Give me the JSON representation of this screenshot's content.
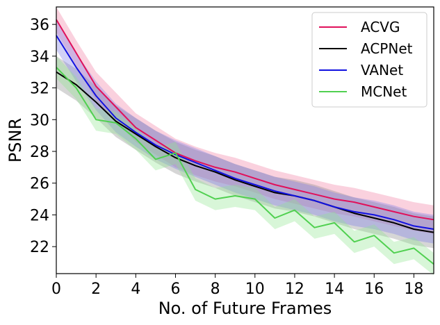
{
  "chart_data": {
    "type": "line",
    "title": "",
    "xlabel": "No. of Future Frames",
    "ylabel": "PSNR",
    "xlim": [
      0,
      19
    ],
    "ylim": [
      20.3,
      37.1
    ],
    "xticks": [
      0,
      2,
      4,
      6,
      8,
      10,
      12,
      14,
      16,
      18
    ],
    "yticks": [
      22,
      24,
      26,
      28,
      30,
      32,
      34,
      36
    ],
    "legend_position": "top-right",
    "x": [
      0,
      1,
      2,
      3,
      4,
      5,
      6,
      7,
      8,
      9,
      10,
      11,
      12,
      13,
      14,
      15,
      16,
      17,
      18,
      19
    ],
    "series": [
      {
        "name": "ACVG",
        "color": "#e0105a",
        "band_color": "#f07aa0",
        "values": [
          36.3,
          34.2,
          32.1,
          30.8,
          29.5,
          28.7,
          27.9,
          27.4,
          27.0,
          26.7,
          26.3,
          25.9,
          25.6,
          25.3,
          25.0,
          24.8,
          24.5,
          24.2,
          23.9,
          23.7
        ],
        "band": [
          0.8,
          0.8,
          0.9,
          0.9,
          0.9,
          0.9,
          0.9,
          0.9,
          0.9,
          0.9,
          0.9,
          0.9,
          0.9,
          0.9,
          0.9,
          0.9,
          0.9,
          0.9,
          0.9,
          0.9
        ]
      },
      {
        "name": "ACPNet",
        "color": "#000000",
        "band_color": "#8a8a8a",
        "values": [
          33.0,
          32.2,
          31.1,
          29.9,
          29.1,
          28.3,
          27.6,
          27.1,
          26.7,
          26.2,
          25.8,
          25.4,
          25.2,
          24.9,
          24.5,
          24.1,
          23.8,
          23.5,
          23.1,
          22.9
        ],
        "band": [
          1.0,
          1.0,
          1.0,
          1.0,
          1.0,
          1.0,
          1.0,
          1.0,
          1.0,
          1.0,
          1.0,
          1.0,
          1.0,
          1.0,
          1.0,
          1.0,
          1.0,
          1.0,
          1.0,
          1.0
        ]
      },
      {
        "name": "VANet",
        "color": "#1010e0",
        "band_color": "#7a7ae8",
        "values": [
          35.3,
          33.3,
          31.5,
          30.1,
          29.2,
          28.4,
          27.8,
          27.3,
          26.8,
          26.3,
          25.9,
          25.5,
          25.2,
          24.9,
          24.5,
          24.2,
          24.0,
          23.7,
          23.3,
          23.1
        ],
        "band": [
          0.9,
          0.9,
          0.9,
          0.9,
          0.9,
          0.9,
          0.9,
          0.9,
          0.9,
          0.9,
          0.9,
          0.9,
          0.9,
          0.9,
          0.9,
          0.9,
          0.9,
          0.9,
          0.9,
          0.9
        ]
      },
      {
        "name": "MCNet",
        "color": "#50d050",
        "band_color": "#90e490",
        "values": [
          33.3,
          32.0,
          30.0,
          29.8,
          28.8,
          27.5,
          27.9,
          25.6,
          25.0,
          25.2,
          25.0,
          23.8,
          24.3,
          23.2,
          23.5,
          22.3,
          22.7,
          21.6,
          21.9,
          20.9
        ],
        "band": [
          0.7,
          0.7,
          0.7,
          0.7,
          0.7,
          0.7,
          0.7,
          0.7,
          0.7,
          0.7,
          0.7,
          0.7,
          0.7,
          0.7,
          0.7,
          0.7,
          0.7,
          0.7,
          0.7,
          0.7
        ]
      }
    ]
  }
}
